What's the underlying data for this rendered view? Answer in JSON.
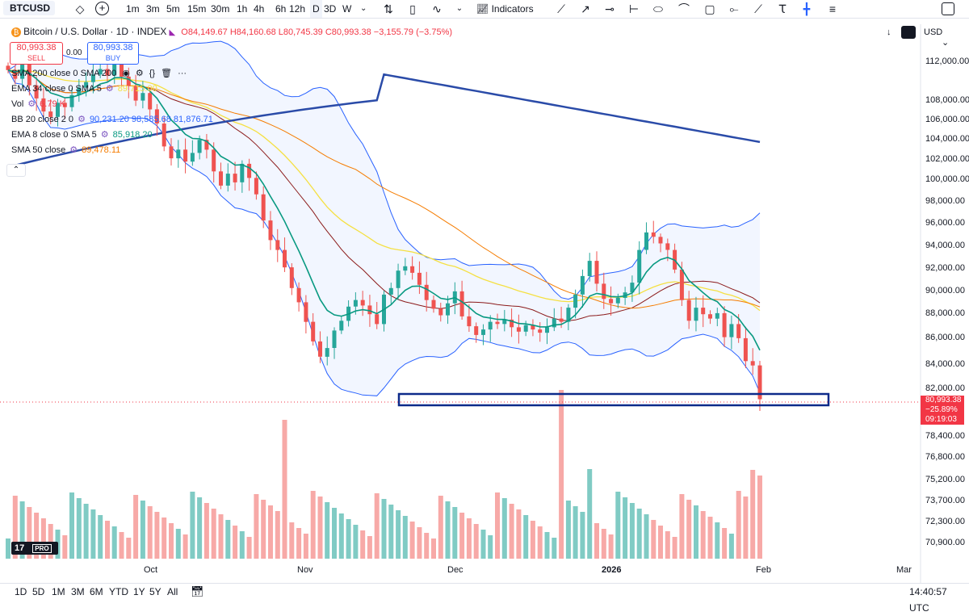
{
  "toolbar": {
    "symbol": "BTCUSD",
    "intervals": [
      "1m",
      "3m",
      "5m",
      "15m",
      "30m",
      "1h",
      "4h",
      "6h",
      "12h",
      "D",
      "3D",
      "W"
    ],
    "active_interval": "D",
    "indicators_label": "Indicators"
  },
  "header": {
    "title": "Bitcoin / U.S. Dollar · 1D · INDEX",
    "ohlc": "O84,149.67 H84,160.68 L80,745.39 C80,993.38 −3,155.79 (−3.75%)",
    "currency": "USD"
  },
  "trade": {
    "sell_price": "80,993.38",
    "sell_label": "SELL",
    "spread": "0.00",
    "buy_price": "80,993.38",
    "buy_label": "BUY"
  },
  "indicators": [
    {
      "name": "SMA 200 close 0 SMA 200",
      "value": "",
      "color": "#2a4ba8"
    },
    {
      "name": "EMA 34 close 0 SMA 5",
      "value": "89,715.00",
      "color": "#f5e042"
    },
    {
      "name": "Vol",
      "value": "6.79 K",
      "color": "#f23645"
    },
    {
      "name": "BB 20 close 2 0",
      "value": "90,231.20  98,585.68  81,876.71",
      "color": "#2962ff"
    },
    {
      "name": "EMA 8 close 0 SMA 5",
      "value": "85,918.20",
      "color": "#089981"
    },
    {
      "name": "SMA 50 close",
      "value": "89,478.11",
      "color": "#f57c00"
    }
  ],
  "price_axis": {
    "labels": [
      "112,000.00",
      "108,000.00",
      "106,000.00",
      "104,000.00",
      "102,000.00",
      "100,000.00",
      "98,000.00",
      "96,000.00",
      "94,000.00",
      "92,000.00",
      "90,000.00",
      "88,000.00",
      "86,000.00",
      "84,000.00",
      "82,000.00",
      "78,400.00",
      "76,800.00",
      "75,200.00",
      "73,700.00",
      "72,300.00",
      "70,900.00"
    ],
    "current_price": "80,993.38",
    "current_change": "−25.89%",
    "countdown": "09:19:03"
  },
  "time_axis": {
    "labels": [
      "Oct",
      "Nov",
      "Dec",
      "2026",
      "Feb",
      "Mar"
    ]
  },
  "bottom": {
    "ranges": [
      "1D",
      "5D",
      "1M",
      "3M",
      "6M",
      "YTD",
      "1Y",
      "5Y",
      "All"
    ],
    "clock": "14:40:57 UTC"
  },
  "logo_text": "PRO",
  "colors": {
    "up": "#26a69a",
    "down": "#ef5350",
    "sma200": "#2a4ba8",
    "ema34": "#f5e042",
    "bb": "#2962ff",
    "ema8": "#089981",
    "sma50": "#f57c00",
    "box": "#0d2a8a"
  },
  "chart_data": {
    "type": "candlestick",
    "series_note": "BTCUSD daily",
    "closes": [
      111200,
      110400,
      112000,
      109800,
      108600,
      107400,
      106900,
      108200,
      107800,
      108900,
      109600,
      110100,
      110800,
      111300,
      110700,
      111900,
      110600,
      109800,
      108400,
      109100,
      107600,
      106300,
      104200,
      103100,
      103900,
      102800,
      103600,
      104800,
      103900,
      101900,
      100600,
      101700,
      100900,
      102600,
      101300,
      99800,
      97400,
      95600,
      94700,
      93100,
      91200,
      89900,
      88100,
      86300,
      84900,
      85700,
      87300,
      88200,
      89500,
      90100,
      89600,
      88800,
      87900,
      90600,
      91200,
      92800,
      93200,
      92600,
      91500,
      90100,
      89300,
      88700,
      89800,
      90900,
      88600,
      87700,
      86900,
      87400,
      88100,
      87900,
      88300,
      87600,
      87200,
      87800,
      87400,
      87100,
      87600,
      88400,
      88100,
      89400,
      90600,
      92300,
      93700,
      91600,
      90200,
      89800,
      90300,
      90800,
      91700,
      94700,
      96300,
      95900,
      95300,
      94700,
      92900,
      90100,
      88200,
      89400,
      88800,
      88400,
      88900,
      86700,
      87900,
      86600,
      84500,
      84100,
      80993
    ]
  }
}
